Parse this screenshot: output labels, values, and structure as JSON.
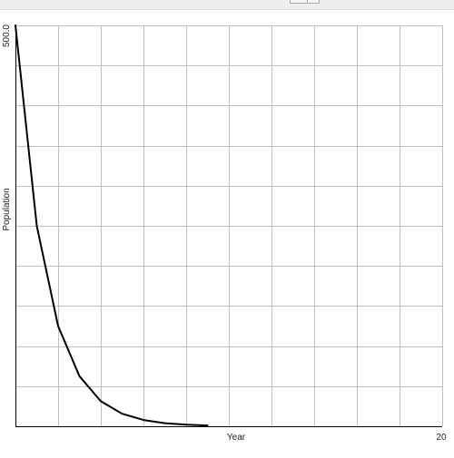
{
  "chart_data": {
    "type": "line",
    "xlabel": "Year",
    "ylabel": "Population",
    "xlim": [
      0,
      20
    ],
    "ylim": [
      0,
      500
    ],
    "x_tick_labels": [
      {
        "value": 20,
        "text": "20"
      }
    ],
    "y_tick_labels": [
      {
        "value": 500,
        "text": "500.0"
      }
    ],
    "x_grid_step": 2,
    "y_grid_step": 50,
    "grid": true,
    "legend": "none",
    "series": [
      {
        "color": "#000000",
        "x": [
          0,
          1,
          2,
          3,
          4,
          5,
          6,
          7,
          8,
          9
        ],
        "y": [
          500,
          250,
          125,
          62.5,
          31.25,
          15.6,
          7.8,
          3.9,
          1.95,
          0.98
        ]
      }
    ]
  }
}
